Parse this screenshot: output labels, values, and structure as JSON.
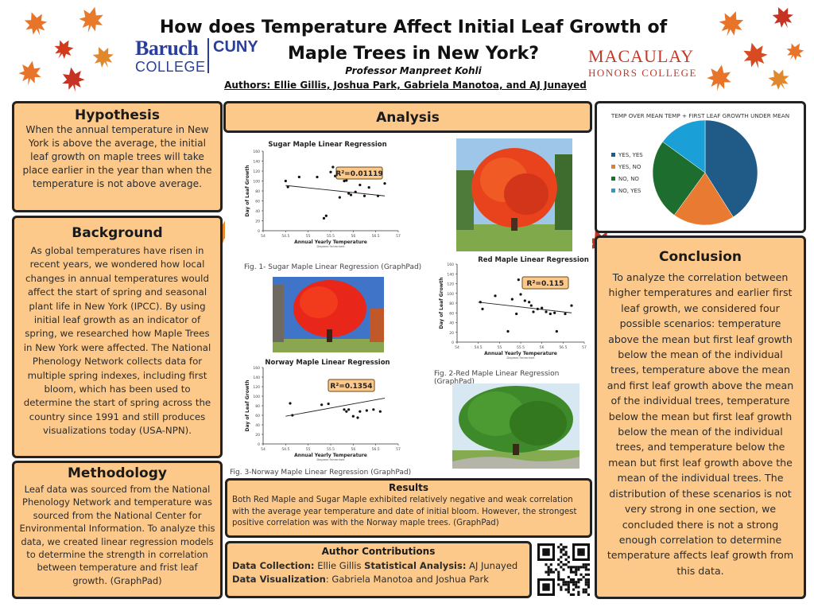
{
  "header": {
    "title": "How does Temperature Affect Initial Leaf Growth of Maple Trees in New York?",
    "professor": "Professor Manpreet Kohli",
    "authors": "Authors: Ellie Gillis, Joshua Park, Gabriela Manotoa, and AJ Junayed",
    "baruch_line1": "Baruch",
    "baruch_line2": "COLLEGE",
    "cuny": "CUNY",
    "macaulay_line1": "MACAULAY",
    "macaulay_line2": "HONORS COLLEGE"
  },
  "hypothesis": {
    "heading": "Hypothesis",
    "text": "When the annual temperature in New York is above the average, the initial leaf growth on maple trees will take place earlier in the year than when the temperature is not above average."
  },
  "background": {
    "heading": "Background",
    "text": "As global temperatures have risen in recent years, we wondered how local changes in annual temperatures would affect the start of spring and seasonal plant life in New York (IPCC). By using initial leaf growth as an indicator of spring, we researched how Maple Trees in New York were affected. The National Phenology Network collects data for multiple spring indexes, including first bloom, which has been used to determine the start of spring across the country since 1991 and still produces visualizations today (USA-NPN)."
  },
  "methodology": {
    "heading": "Methodology",
    "text": "Leaf data was sourced from the National Phenology Network and temperature was sourced from the National Center for Environmental Information. To analyze this data, we created linear regression models to determine the strength in correlation between temperature and frist leaf growth. (GraphPad)"
  },
  "analysis": {
    "heading": "Analysis",
    "fig1_caption": "Fig. 1- Sugar Maple Linear Regression (GraphPad)",
    "fig2_caption": "Fig. 2-Red Maple Linear Regression (GraphPad)",
    "fig3_caption": "Fig. 3-Norway Maple Linear Regression (GraphPad)"
  },
  "results": {
    "heading": "Results",
    "text": "Both Red Maple and Sugar Maple exhibited relatively negative and weak correlation with the average year temperature and date of initial bloom. However, the strongest positive correlation was with the Norway maple trees. (GraphPad)"
  },
  "contributions": {
    "heading": "Author Contributions",
    "data_collection_label": "Data Collection:",
    "data_collection_value": " Ellie Gillis ",
    "stat_label": "Statistical Analysis:",
    "stat_value": " AJ Junayed",
    "viz_label": "Data Visualization",
    "viz_value": ": Gabriela Manotoa and Joshua Park"
  },
  "conclusion": {
    "heading": "Conclusion",
    "text": "To analyze the correlation between higher temperatures and earlier first leaf growth, we considered four possible scenarios: temperature above the mean but first leaf growth below the mean of the individual trees, temperature above the mean and first leaf growth above the mean of the individual trees, temperature below the mean but first leaf growth below the mean of the individual trees, and temperature below the mean but first leaf growth above the mean of the individual trees. The distribution of these scenarios is not very strong in one section, we concluded there is not a strong enough correlation to determine temperature affects leaf growth from this data."
  },
  "chart_data": [
    {
      "type": "scatter",
      "title": "Sugar Maple Linear Regression",
      "xlabel": "Annual Yearly Temperature",
      "xsublabel": "Degrees Fahrenheit",
      "ylabel": "Day of Leaf Growth",
      "annotation": "R²=0.01119",
      "xlim": [
        54.0,
        57.0
      ],
      "ylim": [
        0,
        160
      ],
      "xticks": [
        54.0,
        54.5,
        55.0,
        55.5,
        56.0,
        56.5,
        57.0
      ],
      "yticks": [
        0,
        20,
        40,
        60,
        80,
        100,
        120,
        140,
        160
      ],
      "points": [
        [
          54.5,
          100
        ],
        [
          54.55,
          88
        ],
        [
          54.8,
          108
        ],
        [
          55.2,
          108
        ],
        [
          55.5,
          118
        ],
        [
          55.55,
          128
        ],
        [
          55.6,
          110
        ],
        [
          55.8,
          100
        ],
        [
          55.85,
          101
        ],
        [
          55.7,
          67
        ],
        [
          55.9,
          75
        ],
        [
          55.95,
          72
        ],
        [
          56.05,
          78
        ],
        [
          56.15,
          92
        ],
        [
          56.25,
          70
        ],
        [
          56.35,
          87
        ],
        [
          56.55,
          70
        ],
        [
          56.7,
          95
        ],
        [
          55.4,
          30
        ],
        [
          55.35,
          25
        ]
      ],
      "fit": [
        [
          54.5,
          91
        ],
        [
          56.7,
          70
        ]
      ]
    },
    {
      "type": "scatter",
      "title": "Red Maple Linear Regression",
      "xlabel": "Annual Yearly Temperature",
      "xsublabel": "Degrees Fahrenheit",
      "ylabel": "Day of Leaf Growth",
      "annotation": "R²=0.115",
      "xlim": [
        54.0,
        57.0
      ],
      "ylim": [
        0,
        160
      ],
      "xticks": [
        54.0,
        54.5,
        55.0,
        55.5,
        56.0,
        56.5,
        57.0
      ],
      "yticks": [
        0,
        20,
        40,
        60,
        80,
        100,
        120,
        140,
        160
      ],
      "points": [
        [
          54.55,
          82
        ],
        [
          54.6,
          68
        ],
        [
          54.9,
          95
        ],
        [
          55.3,
          88
        ],
        [
          55.4,
          58
        ],
        [
          55.45,
          128
        ],
        [
          55.5,
          98
        ],
        [
          55.6,
          85
        ],
        [
          55.7,
          82
        ],
        [
          55.75,
          75
        ],
        [
          55.8,
          62
        ],
        [
          55.9,
          68
        ],
        [
          56.0,
          70
        ],
        [
          56.1,
          62
        ],
        [
          56.2,
          58
        ],
        [
          56.3,
          60
        ],
        [
          56.55,
          58
        ],
        [
          56.7,
          75
        ],
        [
          55.2,
          22
        ],
        [
          56.35,
          22
        ]
      ],
      "fit": [
        [
          54.5,
          82
        ],
        [
          56.7,
          60
        ]
      ]
    },
    {
      "type": "scatter",
      "title": "Norway Maple Linear Regression",
      "xlabel": "Annual Yearly Temperature",
      "xsublabel": "Degrees Fahrenheit",
      "ylabel": "Day of Leaf Growth",
      "annotation": "R²=0.1354",
      "xlim": [
        54.0,
        57.0
      ],
      "ylim": [
        0,
        160
      ],
      "xticks": [
        54.0,
        54.5,
        55.0,
        55.5,
        56.0,
        56.5,
        57.0
      ],
      "yticks": [
        0,
        20,
        40,
        60,
        80,
        100,
        120,
        140,
        160
      ],
      "points": [
        [
          54.6,
          85
        ],
        [
          54.65,
          60
        ],
        [
          55.3,
          82
        ],
        [
          55.45,
          84
        ],
        [
          55.8,
          72
        ],
        [
          55.85,
          68
        ],
        [
          55.9,
          72
        ],
        [
          56.0,
          58
        ],
        [
          56.15,
          68
        ],
        [
          56.3,
          70
        ],
        [
          56.45,
          72
        ],
        [
          56.6,
          68
        ],
        [
          56.1,
          55
        ]
      ],
      "fit": [
        [
          54.5,
          58
        ],
        [
          56.7,
          96
        ]
      ]
    },
    {
      "type": "pie",
      "title": "TEMP OVER MEAN TEMP + FIRST LEAF GROWTH UNDER MEAN",
      "legend_position": "left",
      "categories": [
        "YES, YES",
        "YES, NO",
        "NO, NO",
        "NO, YES"
      ],
      "values": [
        41,
        19,
        25,
        15
      ],
      "colors": [
        "#1f5b86",
        "#e87a32",
        "#1d6e2e",
        "#1a9fd6"
      ]
    }
  ]
}
